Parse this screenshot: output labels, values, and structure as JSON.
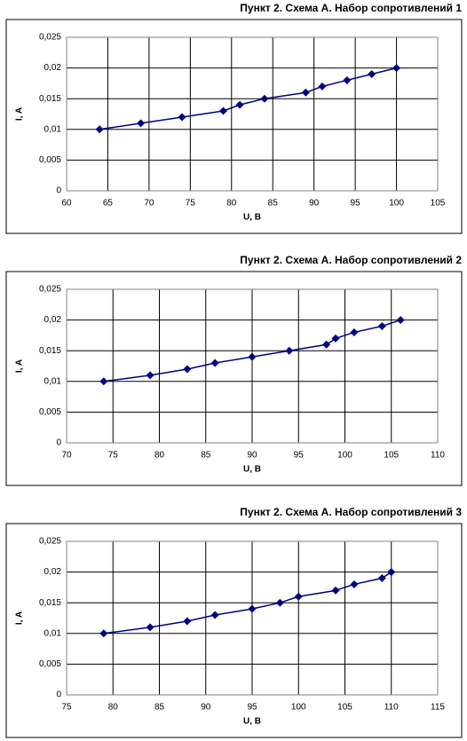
{
  "chart_data": [
    {
      "type": "line",
      "title": "Пункт 2. Схема А. Набор сопротивлений 1",
      "x_label": "U, B",
      "y_label": "I, A",
      "x": [
        64,
        69,
        74,
        79,
        81,
        84,
        89,
        91,
        94,
        97,
        100
      ],
      "series": [
        {
          "color": "#000080",
          "values": [
            0.01,
            0.011,
            0.012,
            0.013,
            0.014,
            0.015,
            0.016,
            0.017,
            0.018,
            0.019,
            0.02
          ]
        }
      ],
      "xlim": [
        60,
        105
      ],
      "xticks": [
        60,
        65,
        70,
        75,
        80,
        85,
        90,
        95,
        100,
        105
      ],
      "ylim": [
        0,
        0.025
      ],
      "yticks": [
        0,
        {
          "value": 0.005,
          "label": "0,005"
        },
        {
          "value": 0.01,
          "label": "0,01"
        },
        {
          "value": 0.015,
          "label": "0,015"
        },
        {
          "value": 0.02,
          "label": "0,02"
        },
        {
          "value": 0.025,
          "label": "0,025"
        }
      ],
      "grid": true
    },
    {
      "type": "line",
      "title": "Пункт 2. Схема А. Набор сопротивлений 2",
      "x_label": "U, B",
      "y_label": "I, A",
      "x": [
        74,
        79,
        83,
        86,
        90,
        94,
        98,
        99,
        101,
        104,
        106
      ],
      "series": [
        {
          "color": "#000080",
          "values": [
            0.01,
            0.011,
            0.012,
            0.013,
            0.014,
            0.015,
            0.016,
            0.017,
            0.018,
            0.019,
            0.02
          ]
        }
      ],
      "xlim": [
        70,
        110
      ],
      "xticks": [
        70,
        75,
        80,
        85,
        90,
        95,
        100,
        105,
        110
      ],
      "ylim": [
        0,
        0.025
      ],
      "yticks": [
        0,
        {
          "value": 0.005,
          "label": "0,005"
        },
        {
          "value": 0.01,
          "label": "0,01"
        },
        {
          "value": 0.015,
          "label": "0,015"
        },
        {
          "value": 0.02,
          "label": "0,02"
        },
        {
          "value": 0.025,
          "label": "0,025"
        }
      ],
      "grid": true
    },
    {
      "type": "line",
      "title": "Пункт 2. Схема А. Набор сопротивлений 3",
      "x_label": "U, B",
      "y_label": "I, A",
      "x": [
        79,
        84,
        88,
        91,
        95,
        98,
        100,
        104,
        106,
        109,
        110
      ],
      "series": [
        {
          "color": "#000080",
          "values": [
            0.01,
            0.011,
            0.012,
            0.013,
            0.014,
            0.015,
            0.016,
            0.017,
            0.018,
            0.019,
            0.02
          ]
        }
      ],
      "xlim": [
        75,
        115
      ],
      "xticks": [
        75,
        80,
        85,
        90,
        95,
        100,
        105,
        110,
        115
      ],
      "ylim": [
        0,
        0.025
      ],
      "yticks": [
        0,
        {
          "value": 0.005,
          "label": "0,005"
        },
        {
          "value": 0.01,
          "label": "0,01"
        },
        {
          "value": 0.015,
          "label": "0,015"
        },
        {
          "value": 0.02,
          "label": "0,02"
        },
        {
          "value": 0.025,
          "label": "0,025"
        }
      ],
      "grid": true
    }
  ]
}
